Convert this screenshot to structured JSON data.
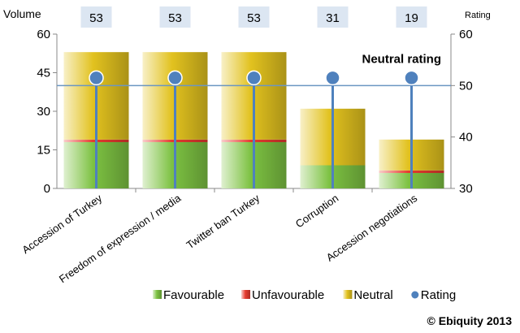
{
  "chart_data": {
    "type": "bar",
    "stacked": true,
    "left_axis_label": "Volume",
    "right_axis_label": "Rating",
    "categories": [
      "Accession of Turkey",
      "Freedom of expression / media",
      "Twitter ban Turkey",
      "Corruption",
      "Accession negotiations"
    ],
    "totals": [
      53,
      53,
      53,
      31,
      19
    ],
    "series": [
      {
        "name": "Favourable",
        "values": [
          18,
          18,
          18,
          9,
          6
        ],
        "color": "#7dc242"
      },
      {
        "name": "Unfavourable",
        "values": [
          1,
          1,
          1,
          0,
          1
        ],
        "color": "#e63b2e"
      },
      {
        "name": "Neutral",
        "values": [
          34,
          34,
          34,
          22,
          12
        ],
        "color": "#e2c21f"
      }
    ],
    "rating": {
      "name": "Rating",
      "values": [
        51.5,
        51.5,
        51.5,
        51.5,
        51.5
      ],
      "color": "#4f81bd"
    },
    "neutral_line": {
      "value": 50,
      "label": "Neutral rating",
      "color": "#6b96c2"
    },
    "ylim_left": [
      0,
      60
    ],
    "yticks_left": [
      0,
      15,
      30,
      45,
      60
    ],
    "ylim_right": [
      30,
      60
    ],
    "yticks_right": [
      30,
      40,
      50,
      60
    ],
    "legend_position": "bottom",
    "grid": false
  },
  "footer": {
    "copyright": "© Ebiquity 2013"
  }
}
